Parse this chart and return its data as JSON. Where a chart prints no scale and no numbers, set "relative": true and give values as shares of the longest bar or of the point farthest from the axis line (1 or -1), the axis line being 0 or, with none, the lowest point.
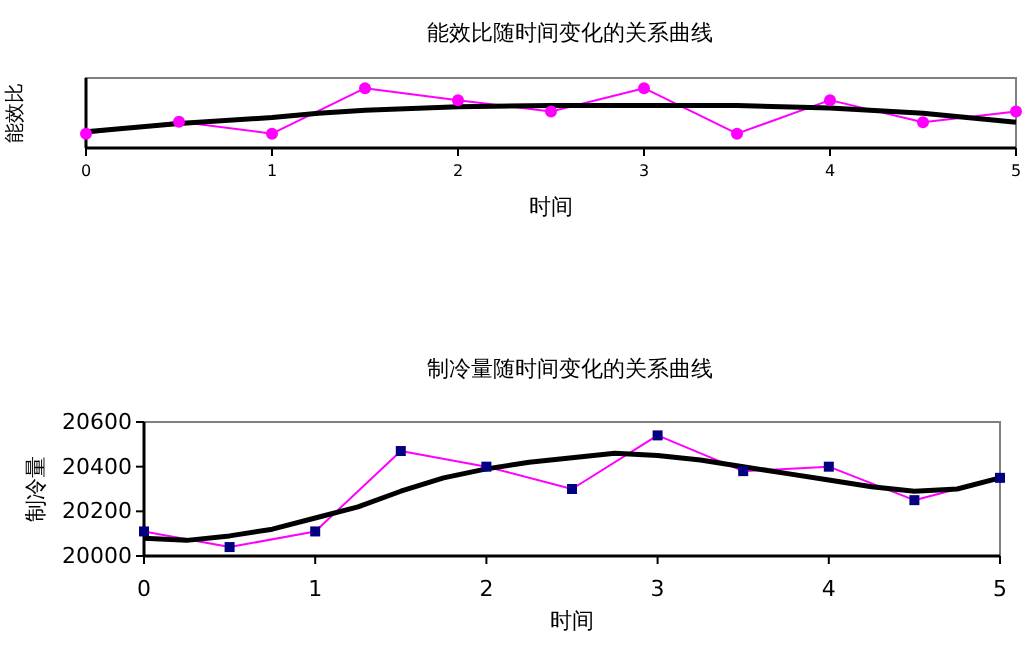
{
  "chart_data": [
    {
      "type": "line",
      "title": "能效比随时间变化的关系曲线",
      "xlabel": "时间",
      "ylabel": "能效比",
      "relative": true,
      "xlim": [
        0,
        5
      ],
      "xticks": [
        0,
        1,
        2,
        3,
        4,
        5
      ],
      "series": [
        {
          "color": "#ff00ff",
          "marker": "circle",
          "x": [
            0,
            0.5,
            1,
            1.5,
            2,
            2.5,
            3,
            3.5,
            4,
            4.5,
            5
          ],
          "values": [
            0.24,
            0.44,
            0.24,
            1,
            0.8,
            0.61,
            1,
            0.24,
            0.8,
            0.43,
            0.61
          ]
        },
        {
          "color": "#000000",
          "marker": "none",
          "x": [
            0,
            0.5,
            1,
            1.25,
            1.5,
            2,
            2.5,
            3,
            3.5,
            4,
            4.5,
            5
          ],
          "values": [
            0.27,
            0.41,
            0.51,
            0.58,
            0.63,
            0.69,
            0.71,
            0.71,
            0.71,
            0.67,
            0.58,
            0.43
          ]
        }
      ]
    },
    {
      "type": "line",
      "title": "制冷量随时间变化的关系曲线",
      "xlabel": "时间",
      "ylabel": "制冷量",
      "xlim": [
        0,
        5
      ],
      "xticks": [
        0,
        1,
        2,
        3,
        4,
        5
      ],
      "ylim": [
        20000,
        20600
      ],
      "yticks": [
        20000,
        20200,
        20400,
        20600
      ],
      "series": [
        {
          "color": "#ff00ff",
          "marker": "square",
          "x": [
            0,
            0.5,
            1,
            1.5,
            2,
            2.5,
            3,
            3.5,
            4,
            4.5,
            5
          ],
          "values": [
            20110,
            20040,
            20110,
            20470,
            20400,
            20300,
            20540,
            20380,
            20400,
            20250,
            20350
          ]
        },
        {
          "color": "#000000",
          "marker": "none",
          "x": [
            0,
            0.25,
            0.5,
            0.75,
            1,
            1.25,
            1.5,
            1.75,
            2,
            2.25,
            2.5,
            2.75,
            3,
            3.25,
            3.5,
            3.75,
            4,
            4.25,
            4.5,
            4.75,
            5
          ],
          "values": [
            20080,
            20070,
            20090,
            20120,
            20170,
            20220,
            20290,
            20350,
            20390,
            20420,
            20440,
            20460,
            20450,
            20430,
            20400,
            20370,
            20340,
            20310,
            20290,
            20300,
            20350
          ]
        }
      ]
    }
  ]
}
